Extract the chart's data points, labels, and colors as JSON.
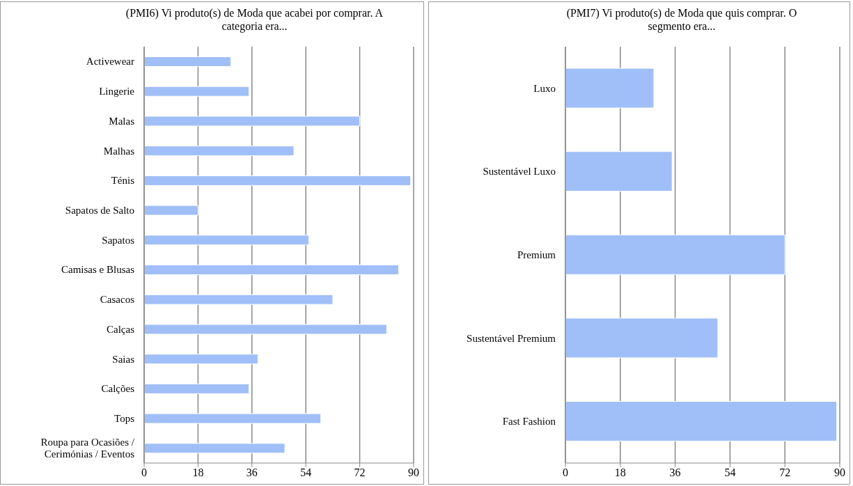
{
  "chart_data": [
    {
      "type": "bar",
      "orientation": "horizontal",
      "title": "(PMI6) Vi produto(s) de Moda que acabei por comprar. A categoria era...",
      "categories": [
        "Activewear",
        "Lingerie",
        "Malas",
        "Malhas",
        "Ténis",
        "Sapatos de Salto",
        "Sapatos",
        "Camisas e Blusas",
        "Casacos",
        "Calças",
        "Saias",
        "Calções",
        "Tops",
        "Roupa para Ocasiões / Cerimónias / Eventos"
      ],
      "values": [
        29,
        35,
        72,
        50,
        89,
        18,
        55,
        85,
        63,
        81,
        38,
        35,
        59,
        47
      ],
      "color": "#a0bff8",
      "xlim": [
        0,
        90
      ],
      "xticks": [
        0,
        18,
        36,
        54,
        72,
        90
      ],
      "grid": "x"
    },
    {
      "type": "bar",
      "orientation": "horizontal",
      "title": "(PMI7) Vi produto(s) de Moda que quis comprar. O segmento era...",
      "categories": [
        "Luxo",
        "Sustentável Luxo",
        "Premium",
        "Sustentável Premium",
        "Fast Fashion"
      ],
      "values": [
        29,
        35,
        72,
        50,
        89
      ],
      "color": "#a0bff8",
      "xlim": [
        0,
        90
      ],
      "xticks": [
        0,
        18,
        36,
        54,
        72,
        90
      ],
      "grid": "x"
    }
  ]
}
